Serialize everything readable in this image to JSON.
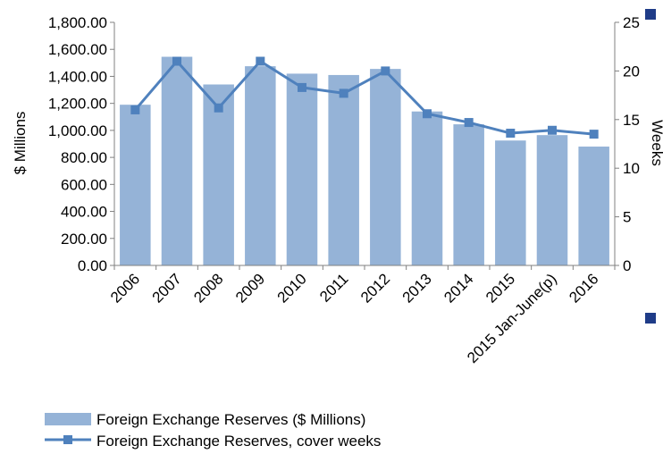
{
  "colors": {
    "bar": "#95b3d7",
    "line": "#4f81bd",
    "axis": "#808080",
    "accent": "#1f3c88"
  },
  "chart_data": {
    "type": "bar",
    "categories": [
      "2006",
      "2007",
      "2008",
      "2009",
      "2010",
      "2011",
      "2012",
      "2013",
      "2014",
      "2015",
      "2015 Jan-June(p)",
      "2016"
    ],
    "series": [
      {
        "name": "Foreign Exchange Reserves ($ Millions)",
        "type": "bar",
        "axis": "left",
        "values": [
          1190,
          1545,
          1340,
          1475,
          1420,
          1410,
          1455,
          1140,
          1045,
          925,
          965,
          880
        ]
      },
      {
        "name": "Foreign Exchange Reserves, cover weeks",
        "type": "line",
        "axis": "right",
        "values": [
          16.0,
          21.0,
          16.2,
          21.0,
          18.3,
          17.7,
          20.0,
          15.6,
          14.7,
          13.6,
          13.9,
          13.5
        ]
      }
    ],
    "ylabel": "$ Millions",
    "ylim": [
      0,
      1800
    ],
    "yticks": [
      "0.00",
      "200.00",
      "400.00",
      "600.00",
      "800.00",
      "1,000.00",
      "1,200.00",
      "1,400.00",
      "1,600.00",
      "1,800.00"
    ],
    "y2label": "Weeks",
    "y2lim": [
      0,
      25
    ],
    "y2ticks": [
      "0",
      "5",
      "10",
      "15",
      "20",
      "25"
    ],
    "grid": false,
    "legend_position": "bottom-left"
  }
}
